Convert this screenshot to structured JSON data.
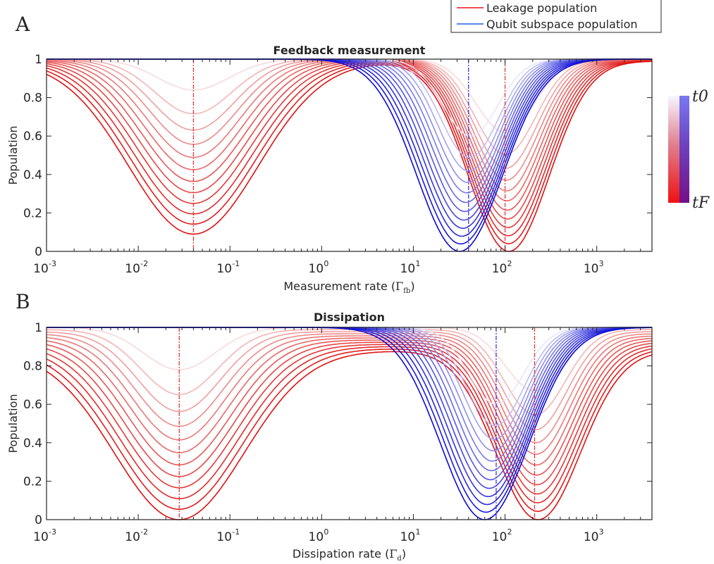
{
  "legend": {
    "items": [
      {
        "label": "Leakage population",
        "color": "#e8141c"
      },
      {
        "label": "Qubit subspace population",
        "color": "#1f5fe6"
      }
    ]
  },
  "colorbar": {
    "top_label": "t0",
    "bottom_label": "tF",
    "top_color": "#f4f4ff",
    "blue_color": "#1010e8",
    "red_color": "#ee1111"
  },
  "chart_data": [
    {
      "panel_letter": "A",
      "type": "line",
      "title": "Feedback measurement",
      "xlabel": "Measurement rate (Γfb)",
      "xlabel_main": "Measurement rate (",
      "xlabel_sym": "Γ",
      "xlabel_sub": "fb",
      "xlabel_close": ")",
      "ylabel": "Population",
      "xscale": "log",
      "xlim": [
        0.001,
        4000
      ],
      "ylim": [
        0,
        1
      ],
      "x_ticks": [
        0.001,
        0.01,
        0.1,
        1,
        10,
        100,
        1000
      ],
      "x_tick_labels": [
        {
          "base": "10",
          "exp": "-3"
        },
        {
          "base": "10",
          "exp": "-2"
        },
        {
          "base": "10",
          "exp": "-1"
        },
        {
          "base": "10",
          "exp": "0"
        },
        {
          "base": "10",
          "exp": "1"
        },
        {
          "base": "10",
          "exp": "2"
        },
        {
          "base": "10",
          "exp": "3"
        }
      ],
      "y_ticks": [
        0,
        0.2,
        0.4,
        0.6,
        0.8,
        1
      ],
      "y_tick_labels": [
        "0",
        "0.2",
        "0.4",
        "0.6",
        "0.8",
        "1"
      ],
      "vlines": [
        {
          "x": 0.04,
          "color": "red"
        },
        {
          "x": 40,
          "color": "blue"
        },
        {
          "x": 100,
          "color": "red"
        }
      ],
      "leakage_series": {
        "n_curves": 12,
        "left_dip_center": 0.04,
        "left_dip_min_first": 0.84,
        "left_dip_min_last": 0.09,
        "left_dip_width_first": 0.55,
        "left_dip_width_last": 1.0,
        "peak": 0.99,
        "right_dip_center_first": 100,
        "right_dip_center_last": 110,
        "right_dip_min_first": 0.62,
        "right_dip_min_last": 0.0,
        "right_dip_width_first": 0.45,
        "right_dip_width_last": 0.62
      },
      "qubit_series": {
        "n_curves": 12,
        "dip_center_first": 42,
        "dip_center_last": 32,
        "dip_min_first": 0.6,
        "dip_min_last": 0.0,
        "dip_width_first": 0.42,
        "dip_width_last": 0.66
      }
    },
    {
      "panel_letter": "B",
      "type": "line",
      "title": "Dissipation",
      "xlabel": "Dissipation rate (Γd)",
      "xlabel_main": "Dissipation rate (",
      "xlabel_sym": "Γ",
      "xlabel_sub": "d",
      "xlabel_close": ")",
      "ylabel": "Population",
      "xscale": "log",
      "xlim": [
        0.001,
        4000
      ],
      "ylim": [
        0,
        1
      ],
      "x_ticks": [
        0.001,
        0.01,
        0.1,
        1,
        10,
        100,
        1000
      ],
      "x_tick_labels": [
        {
          "base": "10",
          "exp": "-3"
        },
        {
          "base": "10",
          "exp": "-2"
        },
        {
          "base": "10",
          "exp": "-1"
        },
        {
          "base": "10",
          "exp": "0"
        },
        {
          "base": "10",
          "exp": "1"
        },
        {
          "base": "10",
          "exp": "2"
        },
        {
          "base": "10",
          "exp": "3"
        }
      ],
      "y_ticks": [
        0,
        0.2,
        0.4,
        0.6,
        0.8,
        1
      ],
      "y_tick_labels": [
        "0",
        "0.2",
        "0.4",
        "0.6",
        "0.8",
        "1"
      ],
      "vlines": [
        {
          "x": 0.028,
          "color": "red"
        },
        {
          "x": 80,
          "color": "blue"
        },
        {
          "x": 210,
          "color": "red"
        }
      ],
      "leakage_series": {
        "n_curves": 12,
        "left_dip_center": 0.028,
        "left_dip_min_first": 0.78,
        "left_dip_min_last": 0.0,
        "left_dip_width_first": 0.55,
        "left_dip_width_last": 1.0,
        "peak": 0.88,
        "right_dip_center_first": 210,
        "right_dip_center_last": 230,
        "right_dip_min_first": 0.67,
        "right_dip_min_last": 0.0,
        "right_dip_width_first": 0.45,
        "right_dip_width_last": 0.65
      },
      "qubit_series": {
        "n_curves": 12,
        "dip_center_first": 80,
        "dip_center_last": 60,
        "dip_min_first": 0.6,
        "dip_min_last": 0.0,
        "dip_width_first": 0.42,
        "dip_width_last": 0.68
      }
    }
  ]
}
